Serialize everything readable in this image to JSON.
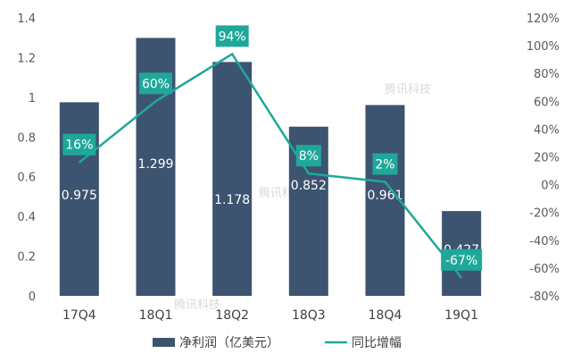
{
  "chart_data": {
    "type": "bar+line",
    "categories": [
      "17Q4",
      "18Q1",
      "18Q2",
      "18Q3",
      "18Q4",
      "19Q1"
    ],
    "series": [
      {
        "name": "净利润（亿美元）",
        "type": "bar",
        "axis": "left",
        "color": "#3d5470",
        "values": [
          0.975,
          1.299,
          1.178,
          0.852,
          0.961,
          0.427
        ],
        "labels": [
          "0.975",
          "1.299",
          "1.178",
          "0.852",
          "0.961",
          "0.427"
        ]
      },
      {
        "name": "同比增幅",
        "type": "line",
        "axis": "right",
        "color": "#1fa89a",
        "values": [
          16,
          60,
          94,
          8,
          2,
          -67
        ],
        "labels": [
          "16%",
          "60%",
          "94%",
          "8%",
          "2%",
          "-67%"
        ]
      }
    ],
    "y_left": {
      "ylim": [
        0,
        1.4
      ],
      "ticks": [
        0,
        0.2,
        0.4,
        0.6,
        0.8,
        1,
        1.2,
        1.4
      ],
      "tick_labels": [
        "0",
        "0.2",
        "0.4",
        "0.6",
        "0.8",
        "1",
        "1.2",
        "1.4"
      ]
    },
    "y_right": {
      "ylim": [
        -80,
        120
      ],
      "ticks": [
        -80,
        -60,
        -40,
        -20,
        0,
        20,
        40,
        60,
        80,
        100,
        120
      ],
      "tick_labels": [
        "-80%",
        "-60%",
        "-40%",
        "-20%",
        "0%",
        "20%",
        "40%",
        "60%",
        "80%",
        "100%",
        "120%"
      ]
    },
    "grid": false,
    "legend": "bottom",
    "watermark": "腾讯科技"
  }
}
